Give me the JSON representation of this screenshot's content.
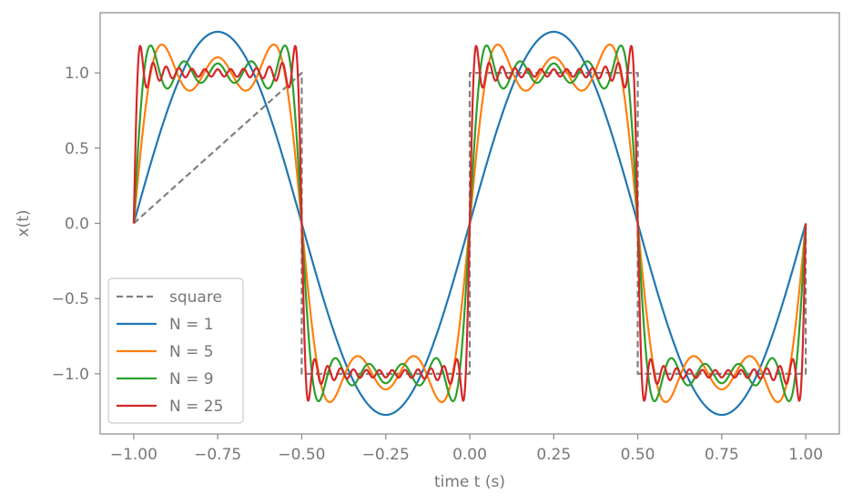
{
  "chart_data": {
    "type": "line",
    "xlabel": "time t (s)",
    "ylabel": "x(t)",
    "xlim": [
      -1.1,
      1.1
    ],
    "ylim": [
      -1.4,
      1.4
    ],
    "xticks": [
      -1.0,
      -0.75,
      -0.5,
      -0.25,
      0.0,
      0.25,
      0.5,
      0.75,
      1.0
    ],
    "xtick_labels": [
      "−1.00",
      "−0.75",
      "−0.50",
      "−0.25",
      "0.00",
      "0.25",
      "0.50",
      "0.75",
      "1.00"
    ],
    "yticks": [
      -1.0,
      -0.5,
      0.0,
      0.5,
      1.0
    ],
    "ytick_labels": [
      "−1.0",
      "−0.5",
      "0.0",
      "0.5",
      "1.0"
    ],
    "grid": false,
    "legend_position": "lower-left",
    "t_range": [
      -1.0,
      1.0
    ],
    "period": 1.0,
    "series": [
      {
        "name": "square",
        "kind": "square",
        "N": 0,
        "color": "#808080",
        "dashed": true
      },
      {
        "name": "N = 1",
        "kind": "fourier",
        "N": 1,
        "color": "#1f77b4",
        "dashed": false
      },
      {
        "name": "N = 5",
        "kind": "fourier",
        "N": 5,
        "color": "#ff7f0e",
        "dashed": false
      },
      {
        "name": "N = 9",
        "kind": "fourier",
        "N": 9,
        "color": "#2ca02c",
        "dashed": false
      },
      {
        "name": "N = 25",
        "kind": "fourier",
        "N": 25,
        "color": "#d62728",
        "dashed": false
      }
    ]
  }
}
